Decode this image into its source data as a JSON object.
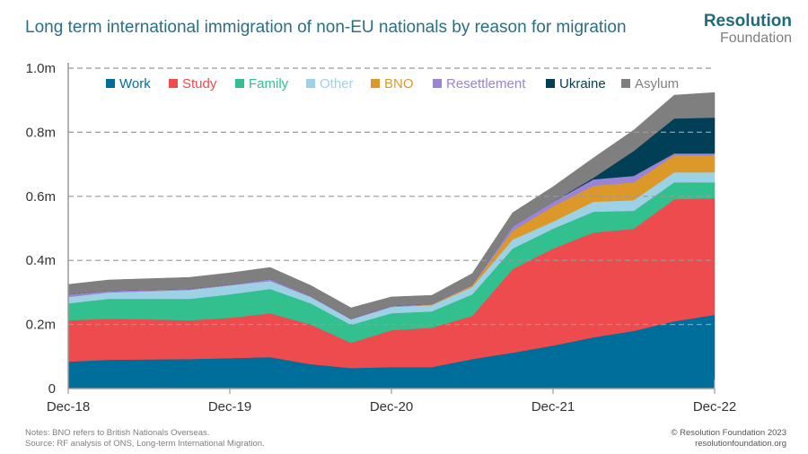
{
  "header": {
    "title": "Long term international immigration of non-EU nationals by reason for migration",
    "logo_line1": "Resolution",
    "logo_line2": "Foundation"
  },
  "footer": {
    "note": "Notes: BNO refers to British Nationals Overseas.",
    "source": "Source: RF analysis of ONS, Long-term International Migration.",
    "copyright": "© Resolution Foundation 2023",
    "website": "resolutionfoundation.org"
  },
  "chart_data": {
    "type": "area",
    "stacked": true,
    "title": "Long term international immigration of non-EU nationals by reason for migration",
    "xlabel": "",
    "ylabel": "",
    "ylim": [
      0,
      1.0
    ],
    "y_ticks": [
      0,
      0.2,
      0.4,
      0.6,
      0.8,
      1.0
    ],
    "y_tick_labels": [
      "0",
      "0.2m",
      "0.4m",
      "0.6m",
      "0.8m",
      "1.0m"
    ],
    "x": [
      "Dec-18",
      "Mar-19",
      "Jun-19",
      "Sep-19",
      "Dec-19",
      "Mar-20",
      "Jun-20",
      "Sep-20",
      "Dec-20",
      "Mar-21",
      "Jun-21",
      "Sep-21",
      "Dec-21",
      "Mar-22",
      "Jun-22",
      "Sep-22",
      "Dec-22"
    ],
    "x_tick_labels": [
      "Dec-18",
      "Dec-19",
      "Dec-20",
      "Dec-21",
      "Dec-22"
    ],
    "grid": "horizontal dashed",
    "legend_placement": "top",
    "unit": "millions",
    "series": [
      {
        "name": "Work",
        "color": "#006e9a",
        "values": [
          0.084,
          0.09,
          0.091,
          0.092,
          0.095,
          0.098,
          0.076,
          0.064,
          0.067,
          0.067,
          0.092,
          0.112,
          0.134,
          0.16,
          0.18,
          0.21,
          0.23
        ]
      },
      {
        "name": "Study",
        "color": "#ee4b4e",
        "values": [
          0.129,
          0.128,
          0.125,
          0.121,
          0.126,
          0.137,
          0.124,
          0.079,
          0.115,
          0.123,
          0.135,
          0.261,
          0.303,
          0.327,
          0.319,
          0.381,
          0.364
        ]
      },
      {
        "name": "Family",
        "color": "#33c08f",
        "values": [
          0.053,
          0.062,
          0.064,
          0.067,
          0.073,
          0.076,
          0.066,
          0.056,
          0.053,
          0.051,
          0.067,
          0.064,
          0.062,
          0.065,
          0.056,
          0.053,
          0.05
        ]
      },
      {
        "name": "Other",
        "color": "#9dd1e6",
        "values": [
          0.02,
          0.02,
          0.024,
          0.028,
          0.028,
          0.025,
          0.02,
          0.017,
          0.02,
          0.019,
          0.023,
          0.028,
          0.022,
          0.031,
          0.033,
          0.031,
          0.031
        ]
      },
      {
        "name": "BNO",
        "color": "#dc992a",
        "values": [
          0,
          0,
          0,
          0,
          0,
          0,
          0,
          0,
          0,
          0.002,
          0.005,
          0.028,
          0.048,
          0.05,
          0.056,
          0.053,
          0.053
        ]
      },
      {
        "name": "Resettlement",
        "color": "#9b83d6",
        "values": [
          0.008,
          0.005,
          0.004,
          0.003,
          0.003,
          0.006,
          0.003,
          0.002,
          0.003,
          0.002,
          0.002,
          0.014,
          0.014,
          0.02,
          0.02,
          0.006,
          0.006
        ]
      },
      {
        "name": "Ukraine",
        "color": "#003f56",
        "values": [
          0,
          0,
          0,
          0,
          0,
          0,
          0,
          0,
          0,
          0,
          0,
          0,
          0,
          0.005,
          0.078,
          0.109,
          0.112
        ]
      },
      {
        "name": "Asylum",
        "color": "#7f7f7f",
        "values": [
          0.031,
          0.034,
          0.035,
          0.036,
          0.036,
          0.036,
          0.033,
          0.034,
          0.028,
          0.027,
          0.035,
          0.042,
          0.047,
          0.062,
          0.065,
          0.073,
          0.078
        ]
      }
    ]
  }
}
